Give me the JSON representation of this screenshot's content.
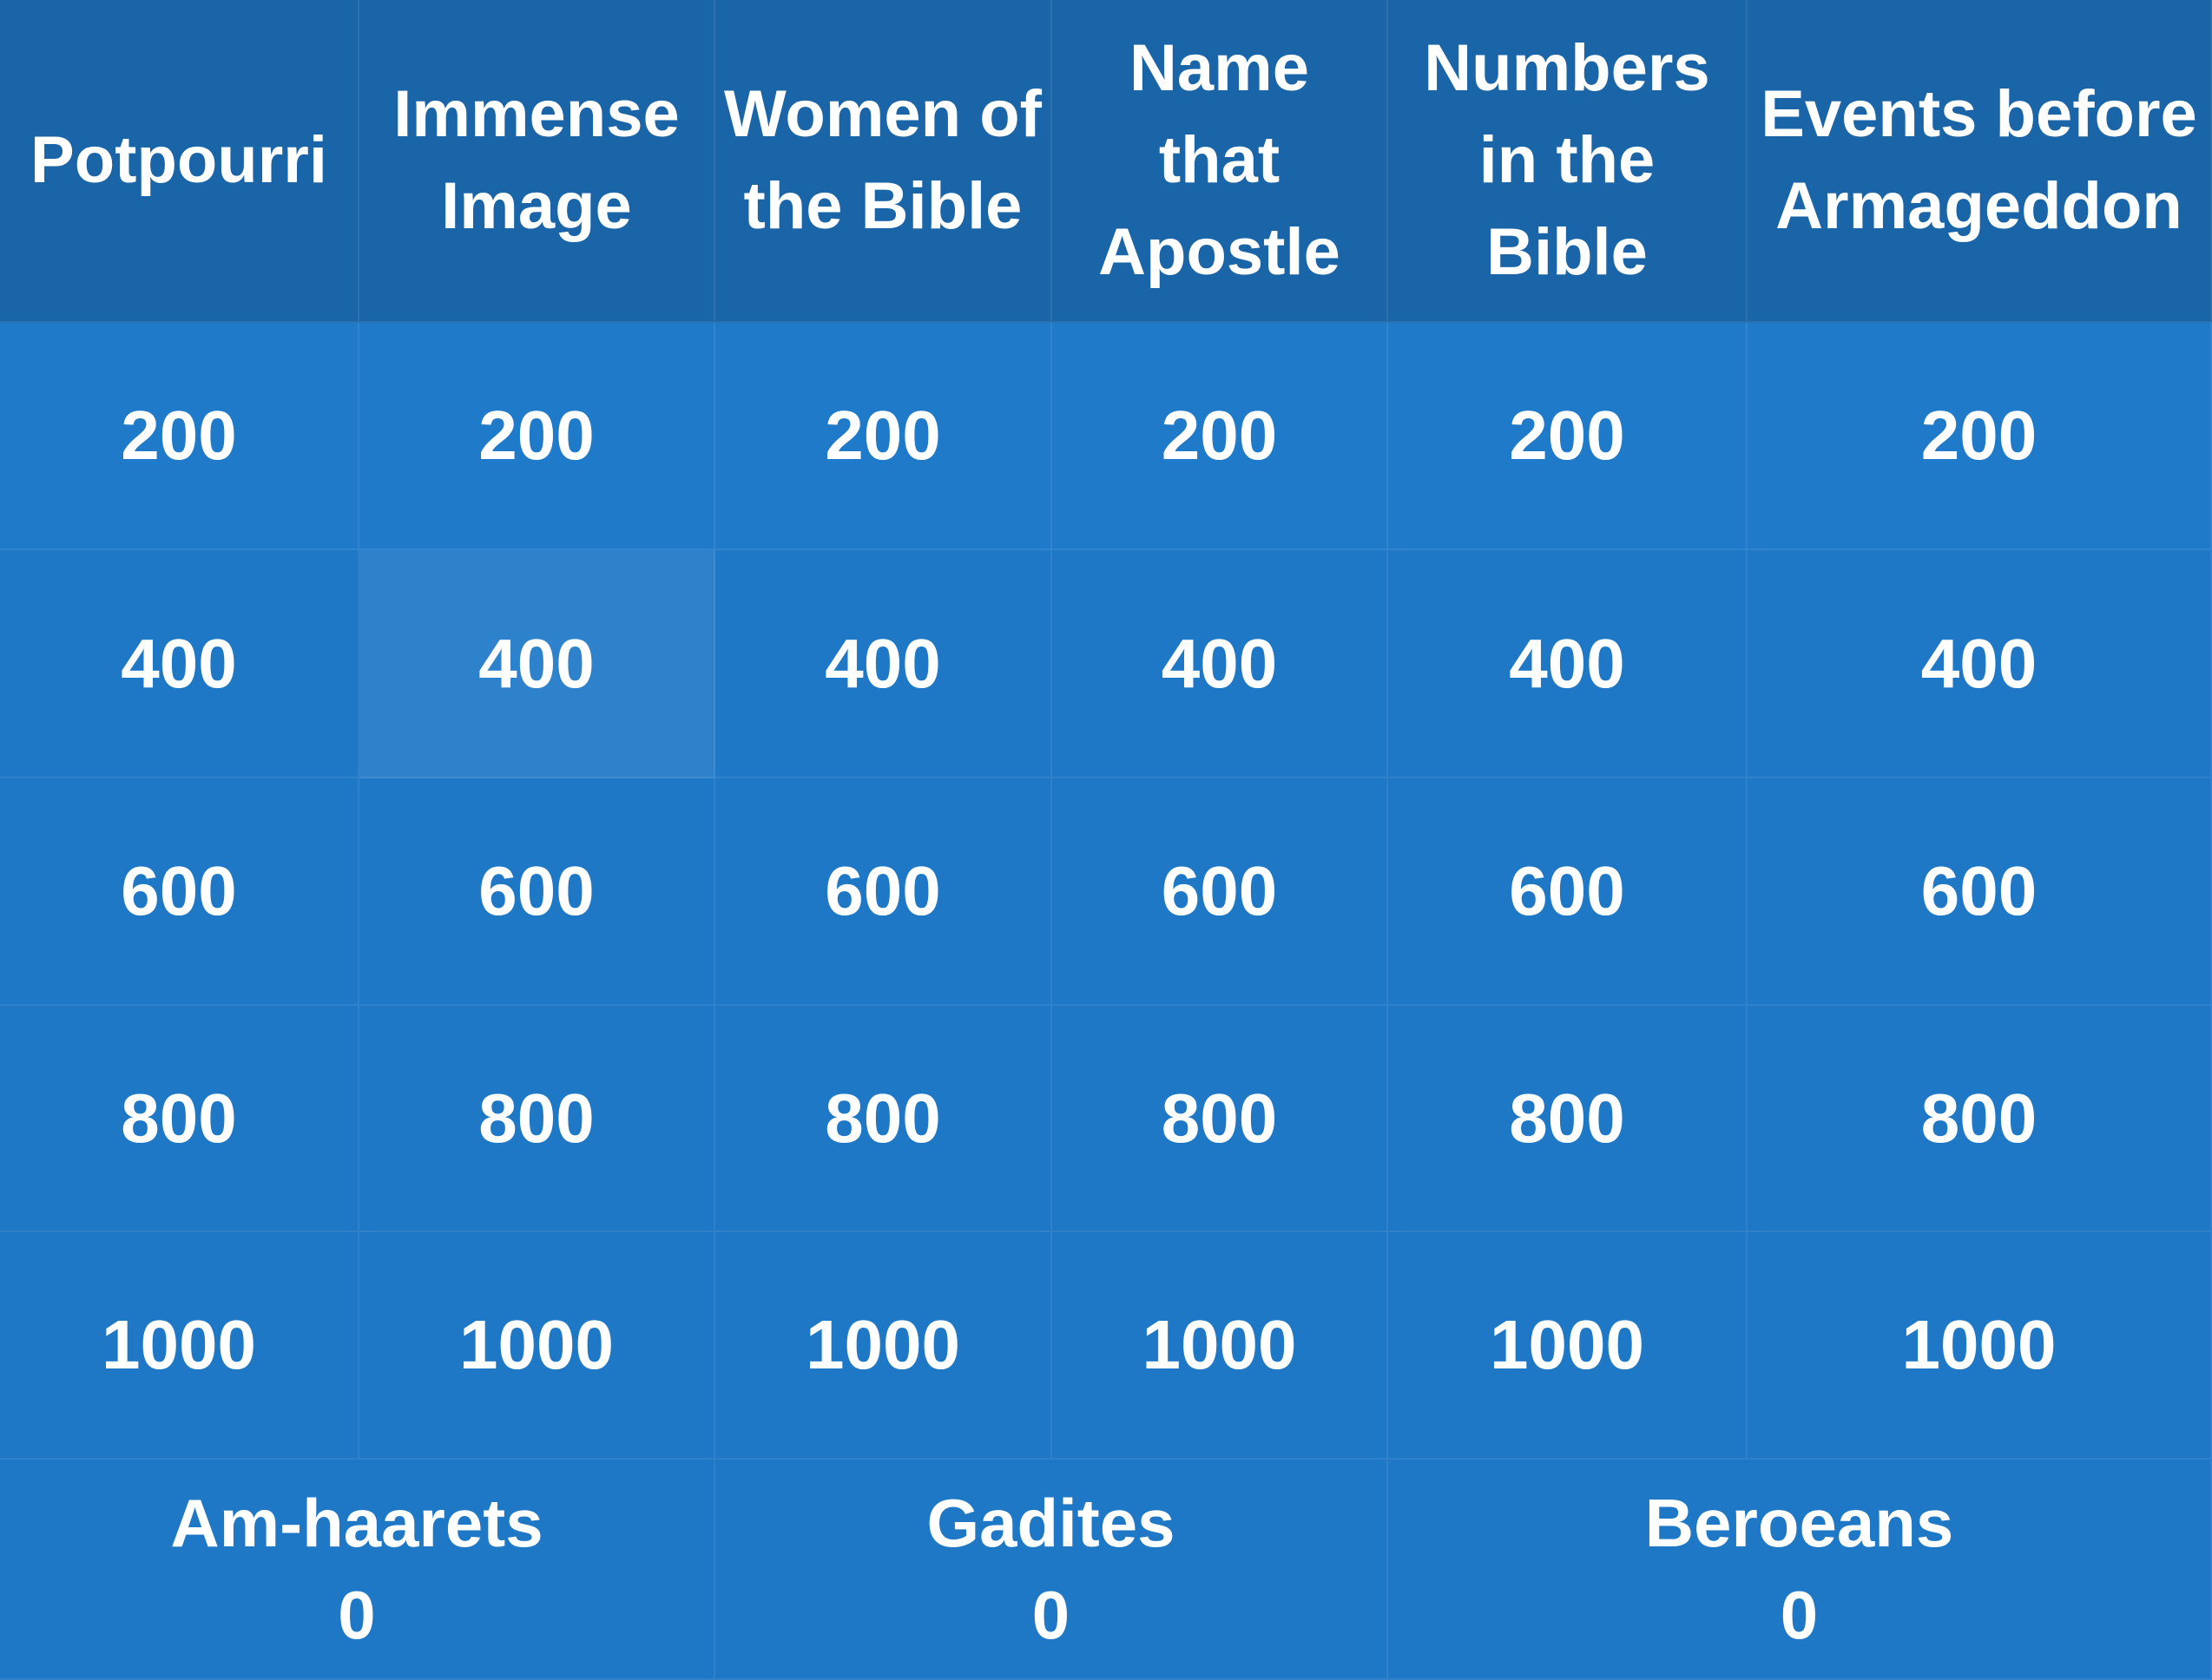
{
  "board": {
    "categories": [
      "Potpourri",
      "Immense Image",
      "Women of the Bible",
      "Name that Apostle",
      "Numbers in the Bible",
      "Events before Armageddon"
    ],
    "rows": [
      [
        200,
        200,
        200,
        200,
        200,
        200
      ],
      [
        400,
        400,
        400,
        400,
        400,
        400
      ],
      [
        600,
        600,
        600,
        600,
        600,
        600
      ],
      [
        800,
        800,
        800,
        800,
        800,
        800
      ],
      [
        1000,
        1000,
        1000,
        1000,
        1000,
        1000
      ]
    ],
    "teams": [
      {
        "name": "Am-haarets",
        "score": 0
      },
      {
        "name": "Gadites",
        "score": 0
      },
      {
        "name": "Beroeans",
        "score": 0
      }
    ]
  }
}
